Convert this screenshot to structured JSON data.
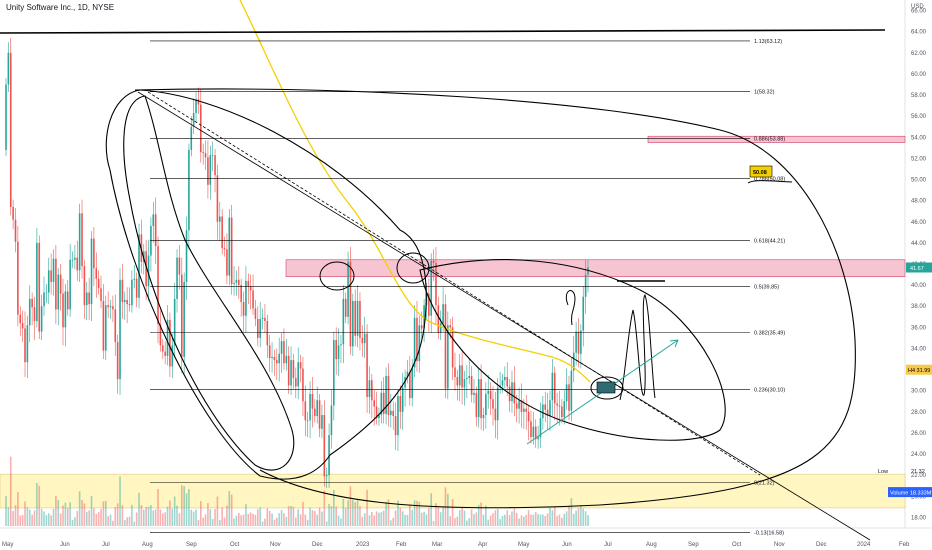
{
  "header": {
    "title": "Unity Software Inc., 1D, NYSE"
  },
  "colors": {
    "up": "#26a69a",
    "down": "#ef5350",
    "ma": "#f5d000",
    "zone_pink": "#f7c5d2",
    "zone_pink_border": "#d0416a",
    "zone_yellow": "#fff6c2",
    "drawing": "#000000",
    "arrow": "#26a69a",
    "last_price": "#26a69a",
    "volume_badge": "#2962ff"
  },
  "chart_data": {
    "type": "candlestick",
    "currency_label": "USD",
    "ylim": [
      17,
      67
    ],
    "y_ticks": [
      18,
      20,
      22,
      24,
      26,
      28,
      30,
      32,
      34,
      36,
      38,
      40,
      42,
      44,
      46,
      48,
      50,
      52,
      54,
      56,
      58,
      60,
      62,
      64,
      66
    ],
    "y_tick_labels": [
      "18.00",
      "20.00",
      "22.00",
      "24.00",
      "26.00",
      "28.00",
      "30.00",
      "32.00",
      "34.00",
      "36.00",
      "38.00",
      "40.00",
      "42.00",
      "44.00",
      "46.00",
      "48.00",
      "50.00",
      "52.00",
      "54.00",
      "56.00",
      "58.00",
      "60.00",
      "62.00",
      "64.00",
      "66.00"
    ],
    "x_labels": [
      "May",
      "Jun",
      "Jul",
      "Aug",
      "Sep",
      "Oct",
      "Nov",
      "Dec",
      "2023",
      "Feb",
      "Mar",
      "Apr",
      "May",
      "Jun",
      "Jul",
      "Aug",
      "Sep",
      "Oct",
      "Nov",
      "Dec",
      "2024",
      "Feb"
    ],
    "fib_levels": [
      {
        "label": "1.13(63.12)",
        "value": 63.12
      },
      {
        "label": "1(58.32)",
        "value": 58.32
      },
      {
        "label": "0.886(53.88)",
        "value": 53.88
      },
      {
        "label": "0.786(50.08)",
        "value": 50.08
      },
      {
        "label": "0.618(44.21)",
        "value": 44.21
      },
      {
        "label": "0.5(39.85)",
        "value": 39.85
      },
      {
        "label": "0.382(35.49)",
        "value": 35.49
      },
      {
        "label": "0.236(30.10)",
        "value": 30.1
      },
      {
        "label": "0(21.32)",
        "value": 21.32
      },
      {
        "label": "-0.13(16.58)",
        "value": 16.58
      }
    ],
    "badges": {
      "last_price": "41.67",
      "mid_price": "31.99",
      "mid_prefix": "H4",
      "low_label": "Low",
      "low_value": "21.32",
      "volume_label": "Volume",
      "volume_value": "18.333M",
      "note": "50.08"
    },
    "candles_open": [
      52.8,
      59.0,
      62.0,
      47.4,
      46.2,
      44.1,
      37.2,
      36.4,
      35.9,
      32.7,
      36.2,
      38.7,
      37.9,
      36.6,
      44.0,
      35.6,
      38.0,
      39.3,
      39.3,
      41.4,
      40.3,
      42.5,
      37.7,
      41.0,
      39.2,
      36.0,
      39.4,
      37.7,
      42.4,
      42.4,
      42.6,
      41.4,
      46.8,
      41.8,
      38.1,
      39.3,
      38.2,
      44.4,
      41.6,
      40.6,
      39.7,
      38.5,
      33.8,
      38.1,
      37.9,
      38.0,
      37.7,
      34.6,
      31.1,
      40.5,
      38.4,
      38.6,
      38.2,
      38.1,
      40.5,
      40.6,
      38.8,
      44.8,
      42.2,
      43.2,
      39.9,
      42.8,
      45.6,
      46.7,
      43.7,
      36.3,
      34.3,
      33.7,
      33.3,
      36.7,
      32.3,
      34.3,
      38.7,
      42.6,
      41.0,
      33.2,
      40.3,
      45.2,
      52.8,
      55.0,
      56.3,
      57.6,
      57.1,
      52.6,
      52.5,
      52.1,
      49.5,
      52.3,
      52.3,
      50.4,
      46.0,
      46.5,
      43.5,
      43.4,
      40.9,
      46.4,
      40.1,
      40.2,
      40.5,
      40.0,
      38.4,
      37.1,
      40.4,
      39.9,
      39.5,
      37.8,
      36.8,
      35.0,
      36.8,
      36.9,
      36.6,
      34.3,
      33.1,
      33.2,
      32.9,
      32.6,
      33.5,
      34.7,
      32.6,
      33.3,
      30.5,
      32.9,
      31.2,
      30.4,
      32.7,
      32.1,
      29.0,
      27.2,
      27.2,
      29.7,
      28.3,
      27.6,
      29.1,
      26.4,
      27.7,
      21.9,
      22.0,
      25.8,
      28.6,
      34.8,
      33.0,
      34.3,
      34.4,
      38.7,
      37.0,
      42.2,
      34.2,
      38.5,
      35.2,
      38.5,
      35.0,
      34.5,
      35.4,
      29.4,
      31.0,
      29.1,
      28.5,
      27.4,
      27.7,
      29.8,
      27.8,
      31.4,
      27.7,
      28.1,
      27.6,
      25.8,
      29.5,
      28.0,
      30.3,
      31.3,
      31.8,
      29.3,
      32.2,
      36.9,
      32.8,
      36.2,
      35.9,
      38.1,
      39.2,
      37.1,
      42.3,
      42.1,
      38.1,
      35.5,
      36.4,
      38.2,
      30.2,
      36.2,
      36.0,
      32.2,
      31.3,
      30.5,
      32.4,
      30.3,
      31.1,
      31.2,
      31.4,
      29.6,
      29.8,
      27.5,
      31.1,
      27.4,
      27.7,
      29.7,
      30.0,
      29.2,
      28.3,
      27.2,
      30.3,
      30.5,
      31.0,
      31.3,
      30.4,
      29.0,
      30.8,
      28.8,
      28.3,
      29.1,
      28.0,
      28.3,
      28.0,
      27.1,
      25.6,
      26.6,
      25.4,
      25.6,
      27.4,
      28.7,
      28.2,
      27.6,
      29.1,
      31.7,
      28.8,
      28.6,
      28.5,
      27.5,
      29.0,
      30.6,
      28.1,
      31.9,
      33.6,
      35.6,
      33.5,
      35.7,
      38.9,
      41.0
    ],
    "candles_close": [
      59.0,
      62.0,
      47.4,
      46.2,
      44.1,
      37.2,
      36.4,
      35.9,
      32.7,
      36.2,
      38.7,
      37.9,
      36.6,
      44.0,
      35.6,
      38.0,
      39.3,
      39.3,
      41.4,
      40.3,
      42.5,
      37.7,
      41.0,
      39.2,
      36.0,
      39.4,
      37.7,
      42.4,
      42.4,
      42.6,
      41.4,
      46.8,
      41.8,
      38.1,
      39.3,
      38.2,
      44.4,
      41.6,
      40.6,
      39.7,
      38.5,
      33.8,
      38.1,
      37.9,
      38.0,
      37.7,
      34.6,
      31.1,
      40.5,
      38.4,
      38.6,
      38.2,
      38.1,
      40.5,
      40.6,
      38.8,
      44.8,
      42.2,
      43.2,
      39.9,
      42.8,
      45.6,
      46.7,
      43.7,
      36.3,
      34.3,
      33.7,
      33.3,
      36.7,
      32.3,
      34.3,
      38.7,
      42.6,
      41.0,
      33.2,
      40.3,
      45.2,
      52.8,
      55.0,
      56.3,
      57.6,
      57.1,
      52.6,
      52.5,
      52.1,
      49.5,
      52.3,
      52.3,
      50.4,
      46.0,
      46.5,
      43.5,
      43.4,
      40.9,
      46.4,
      40.1,
      40.2,
      40.5,
      40.0,
      38.4,
      37.1,
      40.4,
      39.9,
      39.5,
      37.8,
      36.8,
      35.0,
      36.8,
      36.9,
      36.6,
      34.3,
      33.1,
      33.2,
      32.9,
      32.6,
      33.5,
      34.7,
      32.6,
      33.3,
      30.5,
      32.9,
      31.2,
      30.4,
      32.7,
      32.1,
      29.0,
      27.2,
      27.2,
      29.7,
      28.3,
      27.6,
      29.1,
      26.4,
      27.7,
      21.9,
      22.0,
      25.8,
      28.6,
      34.8,
      33.0,
      34.3,
      34.4,
      38.7,
      37.0,
      42.2,
      34.2,
      38.5,
      35.2,
      38.5,
      35.0,
      34.5,
      35.4,
      29.4,
      31.0,
      29.1,
      28.5,
      27.4,
      27.7,
      29.8,
      27.8,
      31.4,
      27.7,
      28.1,
      27.6,
      25.8,
      29.5,
      28.0,
      30.3,
      31.3,
      31.8,
      29.3,
      32.2,
      36.9,
      32.8,
      36.2,
      35.9,
      38.1,
      39.2,
      37.1,
      42.3,
      42.1,
      38.1,
      35.5,
      36.4,
      38.2,
      30.2,
      36.2,
      36.0,
      32.2,
      31.3,
      30.5,
      32.4,
      30.3,
      31.1,
      31.2,
      31.4,
      29.6,
      29.8,
      27.5,
      31.1,
      27.4,
      27.7,
      29.7,
      30.0,
      29.2,
      28.3,
      27.2,
      30.3,
      30.5,
      31.0,
      31.3,
      30.4,
      29.0,
      30.8,
      28.8,
      28.3,
      29.1,
      28.0,
      28.3,
      28.0,
      27.1,
      25.6,
      26.6,
      25.4,
      25.6,
      27.4,
      28.7,
      28.2,
      27.6,
      29.1,
      31.7,
      28.8,
      28.6,
      28.5,
      27.5,
      29.0,
      30.6,
      28.1,
      31.9,
      33.6,
      35.6,
      33.5,
      35.7,
      38.9,
      41.0,
      41.7
    ]
  }
}
